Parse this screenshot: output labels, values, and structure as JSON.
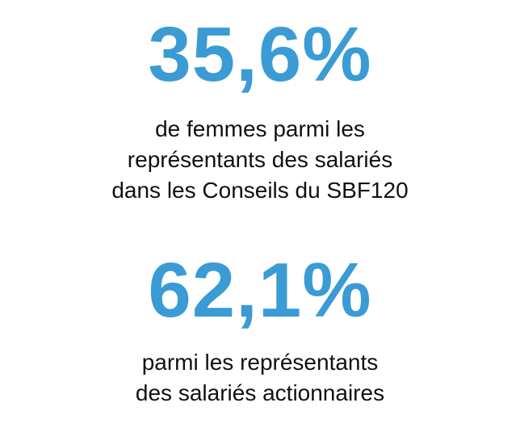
{
  "colors": {
    "accent": "#3a9bd5",
    "text": "#111111",
    "background": "#ffffff"
  },
  "stats": [
    {
      "value": "35,6%",
      "description_lines": [
        "de femmes parmi les",
        "représentants des salariés",
        "dans les Conseils du SBF120"
      ]
    },
    {
      "value": "62,1%",
      "description_lines": [
        "parmi les représentants",
        "des salariés actionnaires"
      ]
    }
  ]
}
